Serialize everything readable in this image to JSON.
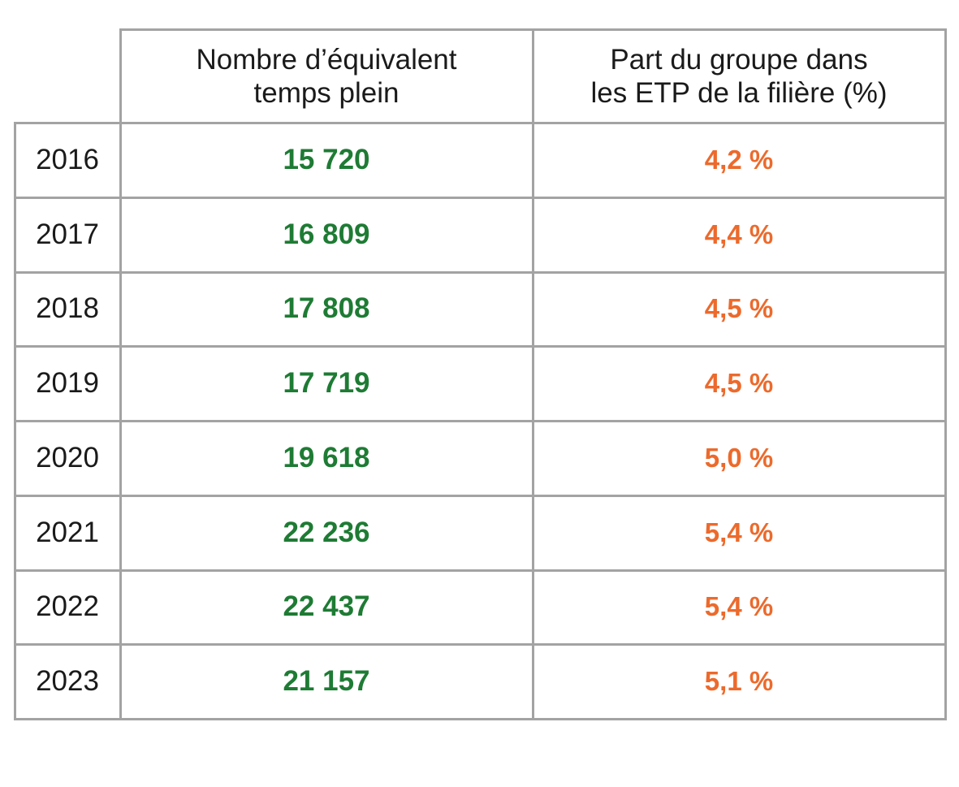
{
  "colors": {
    "grid": "#a3a3a3",
    "etp": "#1e7b34",
    "share": "#ec6a2c",
    "text": "#1a1a1a"
  },
  "chart_data": {
    "type": "table",
    "columns": [
      "",
      "Nombre d’équivalent\ntemps plein",
      "Part du groupe dans\nles ETP de la filière  (%)"
    ],
    "rows": [
      {
        "year": "2016",
        "etp": "15 720",
        "share": "4,2 %"
      },
      {
        "year": "2017",
        "etp": "16 809",
        "share": "4,4 %"
      },
      {
        "year": "2018",
        "etp": "17 808",
        "share": "4,5 %"
      },
      {
        "year": "2019",
        "etp": "17 719",
        "share": "4,5 %"
      },
      {
        "year": "2020",
        "etp": "19 618",
        "share": "5,0 %"
      },
      {
        "year": "2021",
        "etp": "22 236",
        "share": "5,4 %"
      },
      {
        "year": "2022",
        "etp": "22 437",
        "share": "5,4 %"
      },
      {
        "year": "2023",
        "etp": "21 157",
        "share": "5,1 %"
      }
    ]
  }
}
